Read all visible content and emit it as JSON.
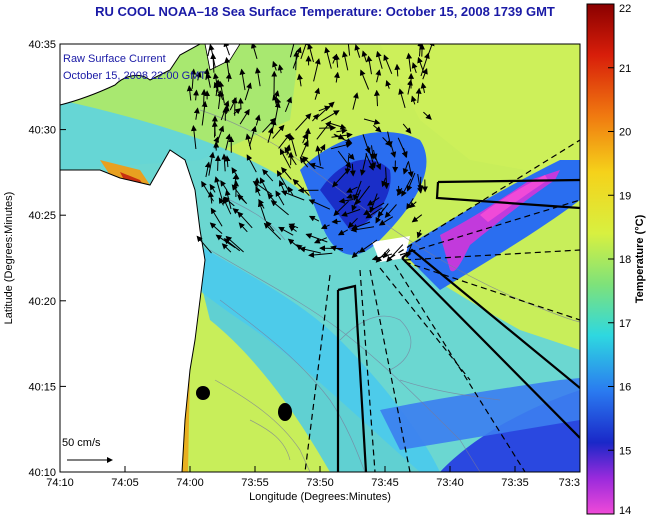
{
  "title": "RU COOL  NOAA–18  Sea Surface Temperature:  October 15, 2008 1739 GMT",
  "overlay": {
    "line1": "Raw Surface Current",
    "line2": "October 15, 2008 22:00 GMT"
  },
  "scale_label": "50 cm/s",
  "x_axis": {
    "label": "Longitude (Degrees:Minutes)",
    "ticks": [
      "74:10",
      "74:05",
      "74:00",
      "73:55",
      "73:50",
      "73:45",
      "73:40",
      "73:35",
      "73:3"
    ]
  },
  "y_axis": {
    "label": "Latitude (Degrees:Minutes)",
    "ticks": [
      "40:35",
      "40:30",
      "40:25",
      "40:20",
      "40:15",
      "40:10"
    ]
  },
  "colorbar": {
    "label": "Temperature (°C)",
    "ticks": [
      "22",
      "21",
      "20",
      "19",
      "18",
      "17",
      "16",
      "15",
      "14"
    ],
    "min": 14,
    "max": 22
  },
  "colors": {
    "title": "#1a1aa6",
    "land": "#ffffff",
    "warm": "#c81e0a",
    "cool": "#1a3ee0",
    "mid": "#c8ee5a"
  }
}
